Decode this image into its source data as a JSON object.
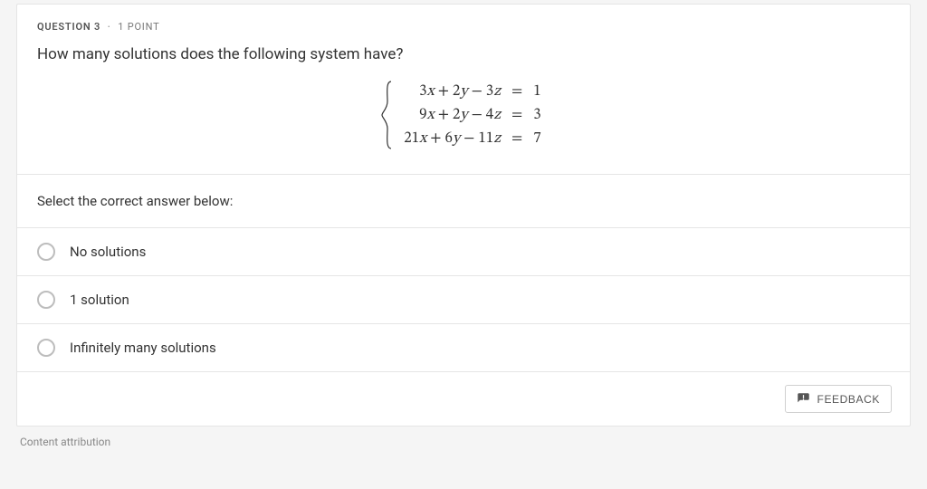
{
  "header": {
    "question_label": "QUESTION",
    "question_number": "3",
    "separator": "·",
    "points": "1 POINT"
  },
  "prompt": "How many solutions does the following system have?",
  "system": {
    "rows": [
      {
        "lhs_html": "3<span class='var'>x</span> + 2<span class='var'>y</span> − 3<span class='var'>z</span>",
        "eq": "=",
        "rhs": "1"
      },
      {
        "lhs_html": "9<span class='var'>x</span> + 2<span class='var'>y</span> − 4<span class='var'>z</span>",
        "eq": "=",
        "rhs": "3"
      },
      {
        "lhs_html": "21<span class='var'>x</span> + 6<span class='var'>y</span> − 11<span class='var'>z</span>",
        "eq": "=",
        "rhs": "7"
      }
    ]
  },
  "instruction": "Select the correct answer below:",
  "choices": [
    {
      "label": "No solutions"
    },
    {
      "label": "1 solution"
    },
    {
      "label": "Infinitely many solutions"
    }
  ],
  "feedback_button": "FEEDBACK",
  "attribution": "Content attribution",
  "style": {
    "card_border": "#e5e5e5",
    "page_bg": "#f5f5f5",
    "radio_border": "#bdbdbd",
    "text_color": "#333333",
    "muted_text": "#888888"
  }
}
